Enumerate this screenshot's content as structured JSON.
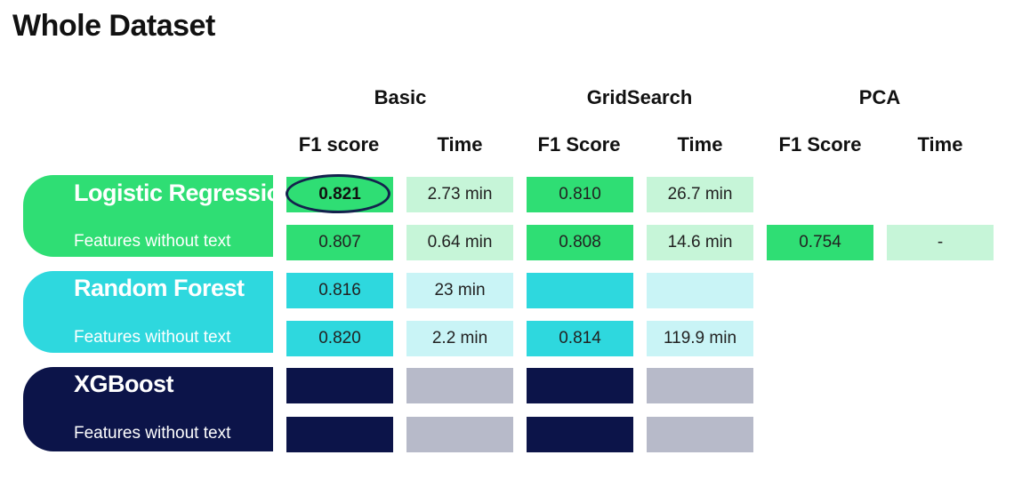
{
  "title": "Whole Dataset",
  "groups": [
    "Basic",
    "GridSearch",
    "PCA"
  ],
  "columns": [
    "F1 score",
    "Time",
    "F1 Score",
    "Time",
    "F1 Score",
    "Time"
  ],
  "colors": {
    "lr_dark": "#2fde74",
    "lr_light": "#c6f5d8",
    "rf_dark": "#2ed8de",
    "rf_light": "#c9f4f6",
    "xgb_dark": "#0c1449",
    "xgb_light": "#b7bac9"
  },
  "models": [
    {
      "name": "Logistic Regression",
      "rows": [
        {
          "label": "",
          "values": [
            "0.821",
            "2.73 min",
            "0.810",
            "26.7 min"
          ]
        },
        {
          "label": "Features without text",
          "values": [
            "0.807",
            "0.64 min",
            "0.808",
            "14.6 min",
            "0.754",
            "-"
          ]
        }
      ]
    },
    {
      "name": "Random Forest",
      "rows": [
        {
          "label": "",
          "values": [
            "0.816",
            "23 min",
            "",
            ""
          ]
        },
        {
          "label": "Features without text",
          "values": [
            "0.820",
            "2.2 min",
            "0.814",
            "119.9 min"
          ]
        }
      ]
    },
    {
      "name": "XGBoost",
      "rows": [
        {
          "label": "",
          "values": [
            "",
            "",
            "",
            ""
          ]
        },
        {
          "label": "Features without text",
          "values": [
            "",
            "",
            "",
            ""
          ]
        }
      ]
    }
  ]
}
